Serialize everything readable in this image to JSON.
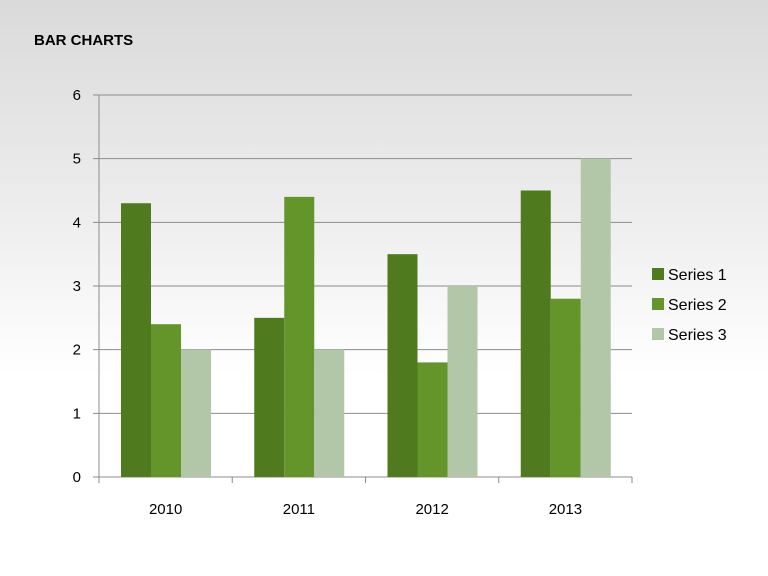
{
  "slide": {
    "title": "BAR CHARTS"
  },
  "chart_data": {
    "type": "bar",
    "title": "",
    "xlabel": "",
    "ylabel": "",
    "categories": [
      "2010",
      "2011",
      "2012",
      "2013"
    ],
    "series": [
      {
        "name": "Series 1",
        "values": [
          4.3,
          2.5,
          3.5,
          4.5
        ],
        "color": "#4f7a1e"
      },
      {
        "name": "Series 2",
        "values": [
          2.4,
          4.4,
          1.8,
          2.8
        ],
        "color": "#63952a"
      },
      {
        "name": "Series 3",
        "values": [
          2,
          2,
          3,
          5
        ],
        "color": "#b2c6a8"
      }
    ],
    "ylim": [
      0,
      6
    ],
    "yticks": [
      "0",
      "1",
      "2",
      "3",
      "4",
      "5",
      "6"
    ],
    "grid": true,
    "legend": "right"
  }
}
